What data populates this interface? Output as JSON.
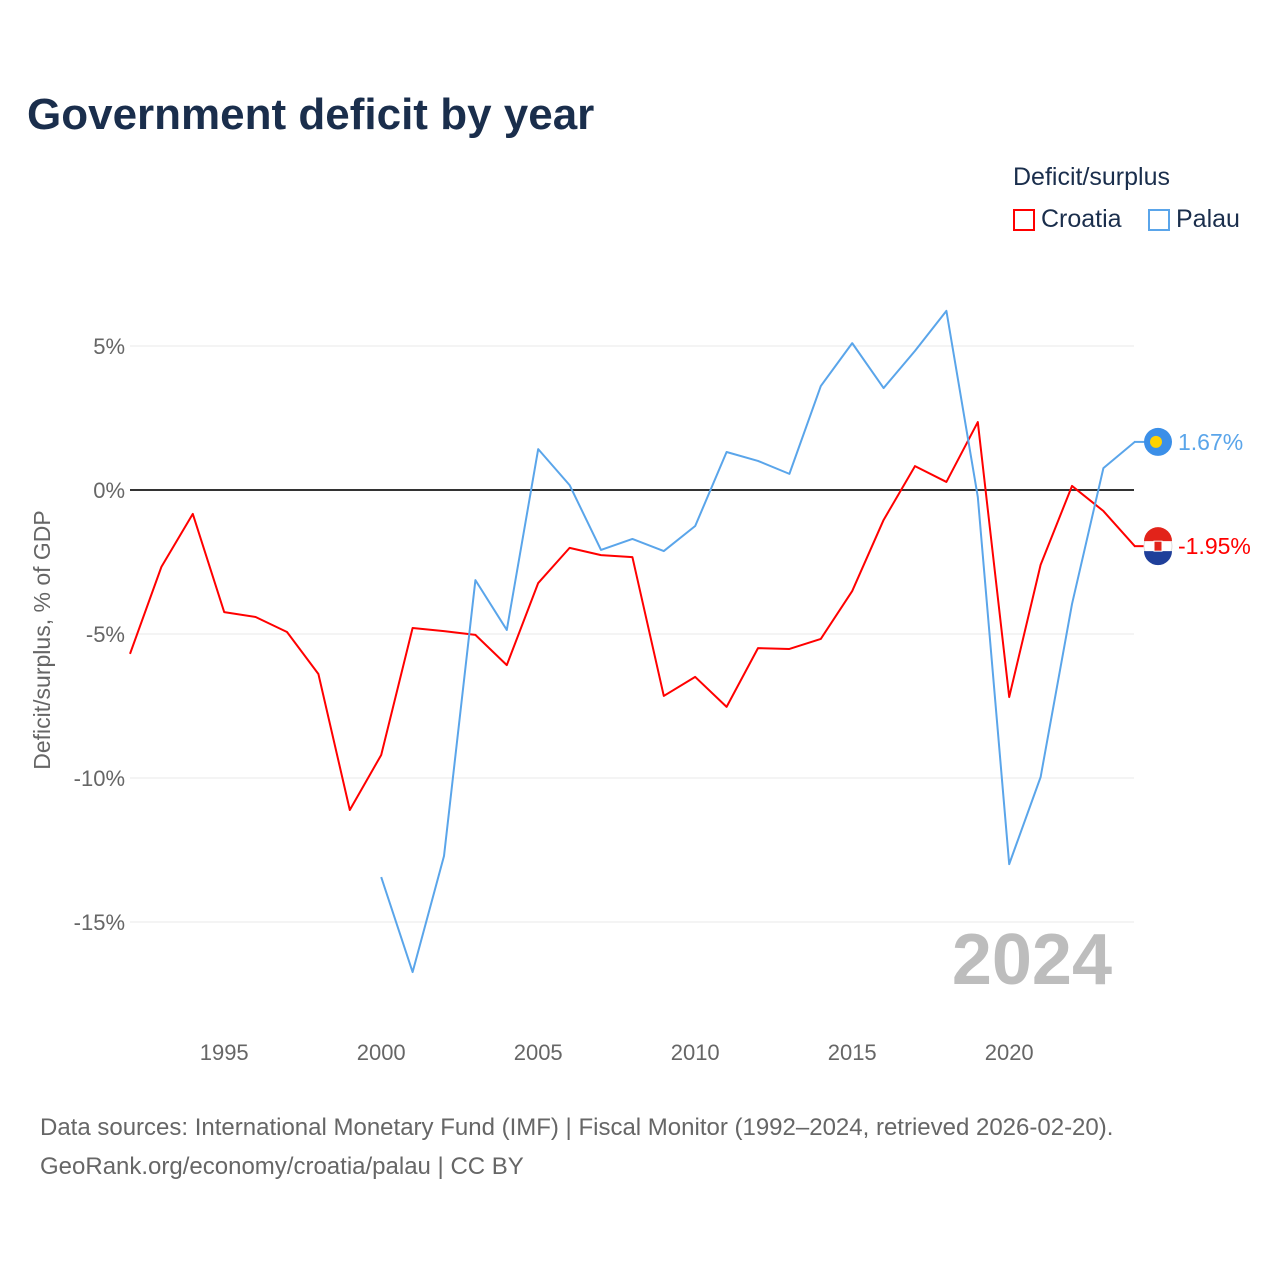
{
  "chart_data": {
    "type": "line",
    "title": "Government deficit by year",
    "ylabel": "Deficit/surplus, % of GDP",
    "xlabel": "",
    "xlim": [
      1992,
      2024
    ],
    "ylim": [
      -17,
      7
    ],
    "x_ticks": [
      1995,
      2000,
      2005,
      2010,
      2015,
      2020
    ],
    "x_tick_labels": [
      "1995",
      "2000",
      "2005",
      "2010",
      "2015",
      "2020"
    ],
    "y_ticks": [
      5,
      0,
      -5,
      -10,
      -15
    ],
    "y_tick_labels": [
      "5%",
      "0%",
      "-5%",
      "-10%",
      "-15%"
    ],
    "grid": true,
    "legend_title": "Deficit/surplus",
    "legend_placement": "top-right",
    "year_watermark": "2024",
    "series": [
      {
        "name": "Croatia",
        "color": "#ff0000",
        "end_label": "-1.95%",
        "start_year": 1992,
        "values": [
          -5.69,
          -2.67,
          -0.83,
          -4.24,
          -4.41,
          -4.93,
          -6.39,
          -11.11,
          -9.2,
          -4.79,
          -4.9,
          -5.03,
          -6.08,
          -3.23,
          -2.01,
          -2.26,
          -2.33,
          -7.15,
          -6.49,
          -7.53,
          -5.49,
          -5.52,
          -5.17,
          -3.51,
          -1.04,
          0.83,
          0.28,
          2.36,
          -7.19,
          -2.6,
          0.14,
          -0.73,
          -1.95
        ]
      },
      {
        "name": "Palau",
        "color": "#5aa5ea",
        "end_label": "1.67%",
        "start_year": 2000,
        "values": [
          -13.44,
          -16.74,
          -12.71,
          -3.13,
          -4.86,
          1.42,
          0.17,
          -2.08,
          -1.7,
          -2.12,
          -1.25,
          1.32,
          1.01,
          0.56,
          3.61,
          5.1,
          3.54,
          4.83,
          6.22,
          -0.24,
          -12.99,
          -9.97,
          -3.96,
          0.76,
          1.67
        ]
      }
    ]
  },
  "source_line1": "Data sources: International Monetary Fund (IMF) | Fiscal Monitor (1992–2024, retrieved 2026-02-20).",
  "source_line2": "GeoRank.org/economy/croatia/palau | CC BY"
}
